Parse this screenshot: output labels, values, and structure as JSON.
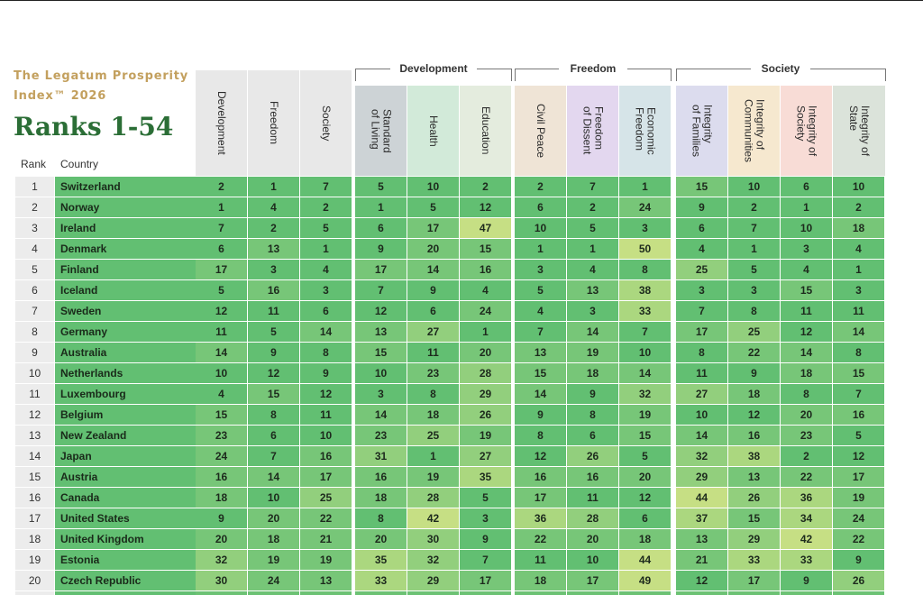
{
  "brand": "The Legatum Prosperity Index™ 2026",
  "title": "Ranks 1-54",
  "headers": {
    "rank": "Rank",
    "country": "Country"
  },
  "groups": [
    {
      "label": "Development"
    },
    {
      "label": "Freedom"
    },
    {
      "label": "Society"
    }
  ],
  "columns": [
    {
      "label": "Development",
      "color": "#e8e8e8"
    },
    {
      "label": "Freedom",
      "color": "#e8e8e8"
    },
    {
      "label": "Society",
      "color": "#e8e8e8"
    },
    {
      "label": "Standard\nof Living",
      "color": "#cdd3d6"
    },
    {
      "label": "Health",
      "color": "#d2ead9"
    },
    {
      "label": "Education",
      "color": "#e4ecde"
    },
    {
      "label": "Civil Peace",
      "color": "#efe4d6"
    },
    {
      "label": "Freedom\nof Dissent",
      "color": "#e3d7ef"
    },
    {
      "label": "Economic\nFreedom",
      "color": "#d6e4e8"
    },
    {
      "label": "Integrity\nof Families",
      "color": "#dcdcee"
    },
    {
      "label": "Integrity of\nCommunities",
      "color": "#f6e8cf"
    },
    {
      "label": "Integrity of\nSociety",
      "color": "#f8dcd6"
    },
    {
      "label": "Integrity of\nState",
      "color": "#dbe3da"
    }
  ],
  "rows": [
    {
      "rank": "1",
      "country": "Switzerland",
      "values": [
        "2",
        "1",
        "7",
        "5",
        "10",
        "2",
        "2",
        "7",
        "1",
        "15",
        "10",
        "6",
        "10"
      ]
    },
    {
      "rank": "2",
      "country": "Norway",
      "values": [
        "1",
        "4",
        "2",
        "1",
        "5",
        "12",
        "6",
        "2",
        "24",
        "9",
        "2",
        "1",
        "2"
      ]
    },
    {
      "rank": "3",
      "country": "Ireland",
      "values": [
        "7",
        "2",
        "5",
        "6",
        "17",
        "47",
        "10",
        "5",
        "3",
        "6",
        "7",
        "10",
        "18"
      ]
    },
    {
      "rank": "4",
      "country": "Denmark",
      "values": [
        "6",
        "13",
        "1",
        "9",
        "20",
        "15",
        "1",
        "1",
        "50",
        "4",
        "1",
        "3",
        "4"
      ]
    },
    {
      "rank": "5",
      "country": "Finland",
      "values": [
        "17",
        "3",
        "4",
        "17",
        "14",
        "16",
        "3",
        "4",
        "8",
        "25",
        "5",
        "4",
        "1"
      ]
    },
    {
      "rank": "6",
      "country": "Iceland",
      "values": [
        "5",
        "16",
        "3",
        "7",
        "9",
        "4",
        "5",
        "13",
        "38",
        "3",
        "3",
        "15",
        "3"
      ]
    },
    {
      "rank": "7",
      "country": "Sweden",
      "values": [
        "12",
        "11",
        "6",
        "12",
        "6",
        "24",
        "4",
        "3",
        "33",
        "7",
        "8",
        "11",
        "11"
      ]
    },
    {
      "rank": "8",
      "country": "Germany",
      "values": [
        "11",
        "5",
        "14",
        "13",
        "27",
        "1",
        "7",
        "14",
        "7",
        "17",
        "25",
        "12",
        "14"
      ]
    },
    {
      "rank": "9",
      "country": "Australia",
      "values": [
        "14",
        "9",
        "8",
        "15",
        "11",
        "20",
        "13",
        "19",
        "10",
        "8",
        "22",
        "14",
        "8"
      ]
    },
    {
      "rank": "10",
      "country": "Netherlands",
      "values": [
        "10",
        "12",
        "9",
        "10",
        "23",
        "28",
        "15",
        "18",
        "14",
        "11",
        "9",
        "18",
        "15"
      ]
    },
    {
      "rank": "11",
      "country": "Luxembourg",
      "values": [
        "4",
        "15",
        "12",
        "3",
        "8",
        "29",
        "14",
        "9",
        "32",
        "27",
        "18",
        "8",
        "7"
      ]
    },
    {
      "rank": "12",
      "country": "Belgium",
      "values": [
        "15",
        "8",
        "11",
        "14",
        "18",
        "26",
        "9",
        "8",
        "19",
        "10",
        "12",
        "20",
        "16"
      ]
    },
    {
      "rank": "13",
      "country": "New Zealand",
      "values": [
        "23",
        "6",
        "10",
        "23",
        "25",
        "19",
        "8",
        "6",
        "15",
        "14",
        "16",
        "23",
        "5"
      ]
    },
    {
      "rank": "14",
      "country": "Japan",
      "values": [
        "24",
        "7",
        "16",
        "31",
        "1",
        "27",
        "12",
        "26",
        "5",
        "32",
        "38",
        "2",
        "12"
      ]
    },
    {
      "rank": "15",
      "country": "Austria",
      "values": [
        "16",
        "14",
        "17",
        "16",
        "19",
        "35",
        "16",
        "16",
        "20",
        "29",
        "13",
        "22",
        "17"
      ]
    },
    {
      "rank": "16",
      "country": "Canada",
      "values": [
        "18",
        "10",
        "25",
        "18",
        "28",
        "5",
        "17",
        "11",
        "12",
        "44",
        "26",
        "36",
        "19"
      ]
    },
    {
      "rank": "17",
      "country": "United States",
      "values": [
        "9",
        "20",
        "22",
        "8",
        "42",
        "3",
        "36",
        "28",
        "6",
        "37",
        "15",
        "34",
        "24"
      ]
    },
    {
      "rank": "18",
      "country": "United Kingdom",
      "values": [
        "20",
        "18",
        "21",
        "20",
        "30",
        "9",
        "22",
        "20",
        "18",
        "13",
        "29",
        "42",
        "22"
      ]
    },
    {
      "rank": "19",
      "country": "Estonia",
      "values": [
        "32",
        "19",
        "19",
        "35",
        "32",
        "7",
        "11",
        "10",
        "44",
        "21",
        "33",
        "33",
        "9"
      ]
    },
    {
      "rank": "20",
      "country": "Czech Republic",
      "values": [
        "30",
        "24",
        "13",
        "33",
        "29",
        "17",
        "18",
        "17",
        "49",
        "12",
        "17",
        "9",
        "26"
      ]
    }
  ]
}
